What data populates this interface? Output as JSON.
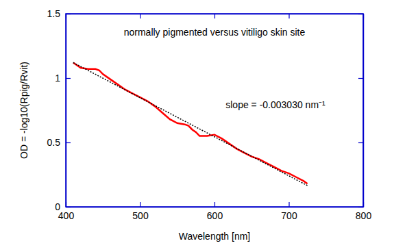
{
  "chart_data": {
    "type": "line",
    "xlabel": "Wavelength [nm]",
    "ylabel": "OD = -log10(Rpig/Rvit)",
    "annotations": [
      {
        "text": "normally pigmented versus vitiligo skin site"
      },
      {
        "text": "slope = -0.003030 nm⁻¹"
      }
    ],
    "xlim": [
      400,
      800
    ],
    "ylim": [
      0,
      1.5
    ],
    "xticks": [
      400,
      500,
      600,
      700,
      800
    ],
    "yticks": [
      0,
      0.5,
      1,
      1.5
    ],
    "grid": false,
    "series": [
      {
        "color": "#ff0000",
        "line_style": "solid",
        "x": [
          410,
          415,
          420,
          430,
          440,
          445,
          450,
          460,
          470,
          480,
          490,
          500,
          510,
          520,
          530,
          540,
          550,
          560,
          565,
          570,
          575,
          580,
          590,
          600,
          610,
          620,
          630,
          640,
          650,
          660,
          670,
          680,
          690,
          700,
          710,
          720,
          725
        ],
        "values": [
          1.12,
          1.1,
          1.08,
          1.07,
          1.07,
          1.06,
          1.03,
          0.99,
          0.95,
          0.91,
          0.88,
          0.85,
          0.82,
          0.78,
          0.73,
          0.68,
          0.65,
          0.64,
          0.63,
          0.6,
          0.58,
          0.55,
          0.55,
          0.56,
          0.53,
          0.49,
          0.45,
          0.42,
          0.39,
          0.37,
          0.34,
          0.31,
          0.28,
          0.26,
          0.23,
          0.2,
          0.18
        ]
      },
      {
        "color": "#000000",
        "line_style": "dotted",
        "x": [
          410,
          725
        ],
        "values": [
          1.12,
          0.165
        ]
      }
    ]
  }
}
